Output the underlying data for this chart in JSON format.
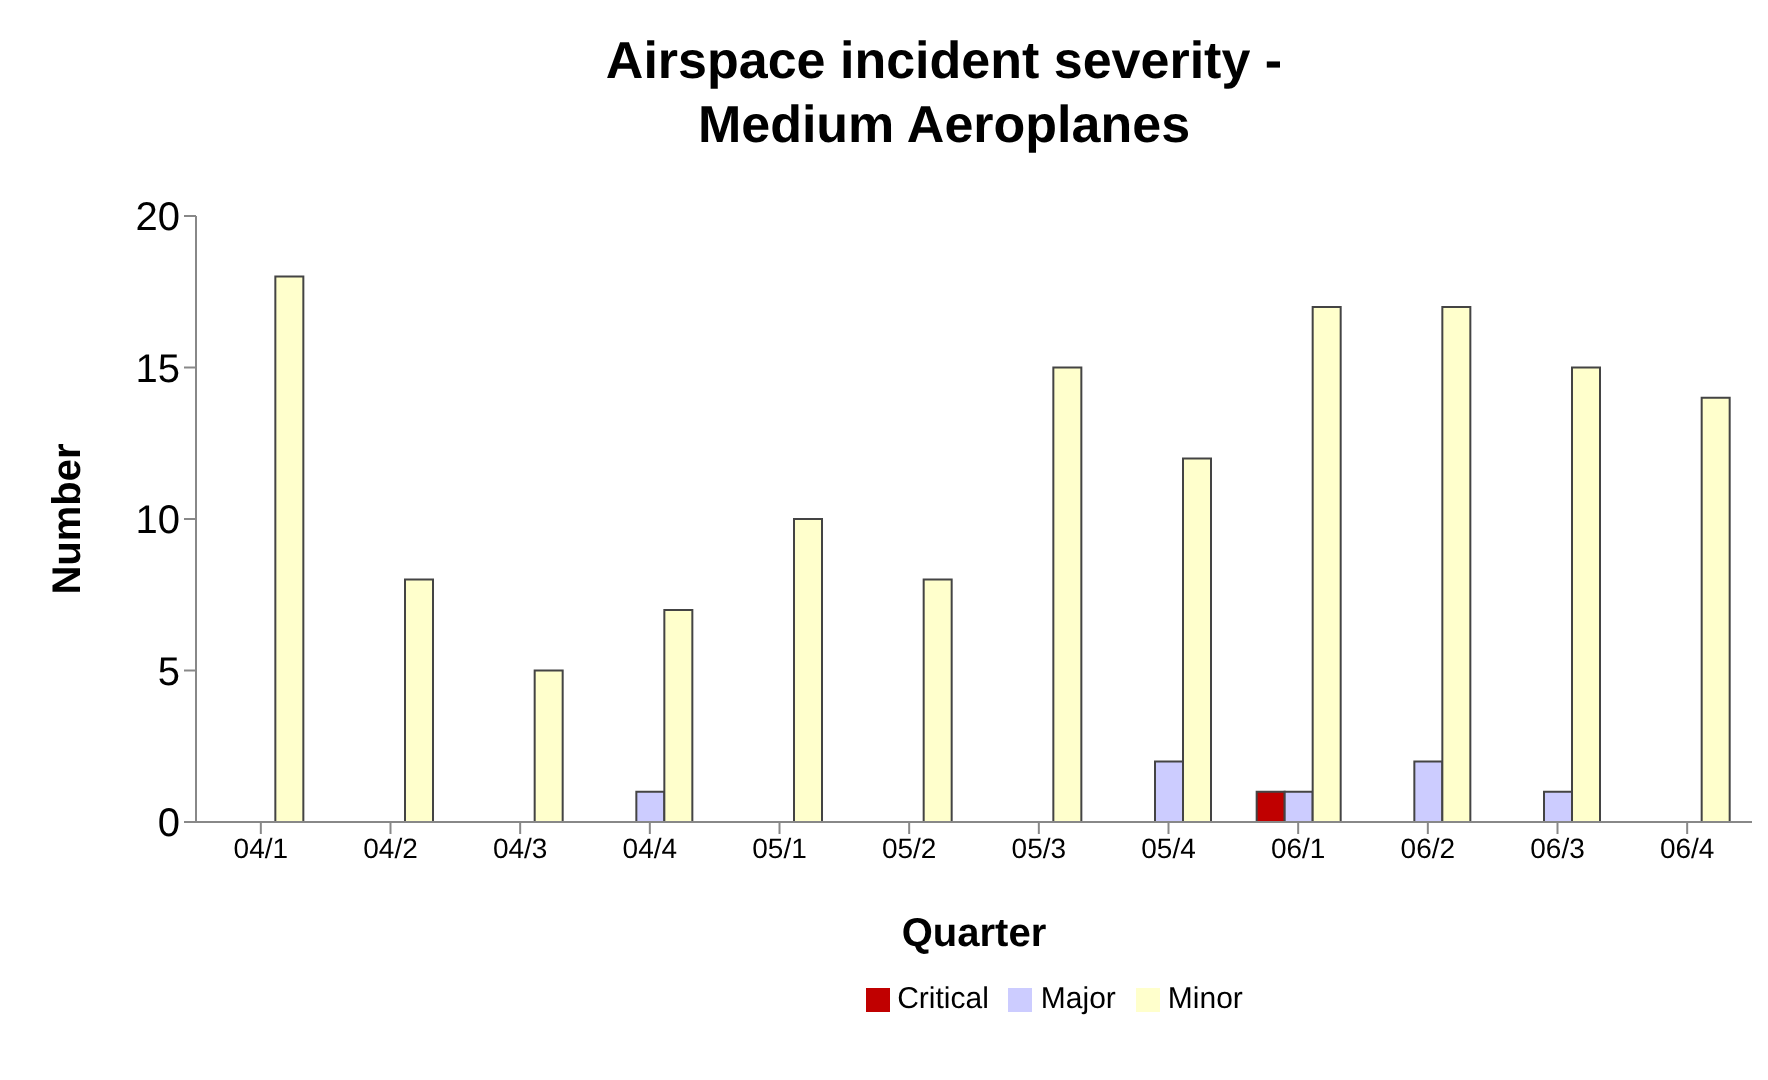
{
  "chart_data": {
    "type": "bar",
    "title": "Airspace incident severity -\nMedium Aeroplanes",
    "xlabel": "Quarter",
    "ylabel": "Number",
    "categories": [
      "04/1",
      "04/2",
      "04/3",
      "04/4",
      "05/1",
      "05/2",
      "05/3",
      "05/4",
      "06/1",
      "06/2",
      "06/3",
      "06/4"
    ],
    "series": [
      {
        "name": "Critical",
        "color": "#c00000",
        "values": [
          0,
          0,
          0,
          0,
          0,
          0,
          0,
          0,
          1,
          0,
          0,
          0
        ]
      },
      {
        "name": "Major",
        "color": "#ccccff",
        "values": [
          0,
          0,
          0,
          1,
          0,
          0,
          0,
          2,
          1,
          2,
          1,
          0
        ]
      },
      {
        "name": "Minor",
        "color": "#ffffcc",
        "values": [
          18,
          8,
          5,
          7,
          10,
          8,
          15,
          12,
          17,
          17,
          15,
          14
        ]
      }
    ],
    "ylim": [
      0,
      20
    ],
    "yticks": [
      0,
      5,
      10,
      15,
      20
    ],
    "grid": false,
    "legend": "bottom"
  }
}
